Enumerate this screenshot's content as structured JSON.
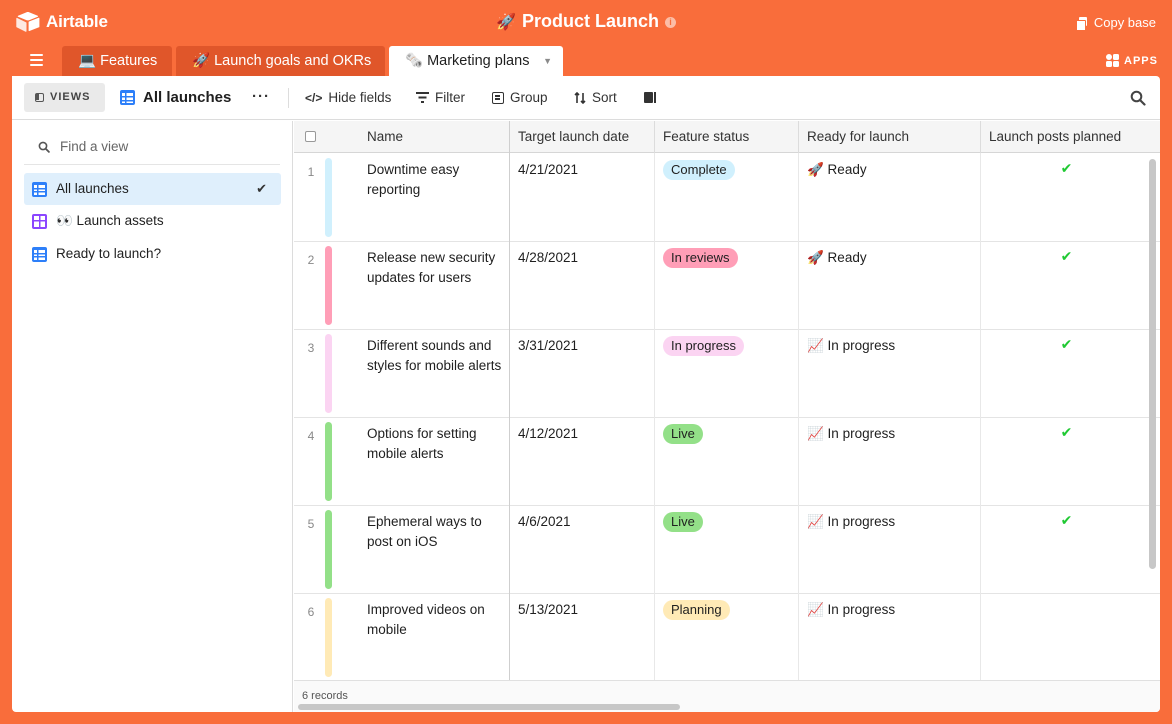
{
  "app": {
    "logo_text": "Airtable",
    "base_title": "Product Launch",
    "base_title_emoji": "🚀",
    "copy_base": "Copy base"
  },
  "tabs": [
    {
      "label": "💻 Features",
      "active": false
    },
    {
      "label": "🚀 Launch goals and OKRs",
      "active": false
    },
    {
      "label": "🗞️ Marketing plans",
      "active": true
    }
  ],
  "apps_label": "APPS",
  "viewbar": {
    "views_label": "VIEWS",
    "current_view": "All launches",
    "more": "···",
    "hide_fields": "Hide fields",
    "filter": "Filter",
    "group": "Group",
    "sort": "Sort"
  },
  "sidebar": {
    "search_placeholder": "Find a view",
    "views": [
      {
        "label": "All launches",
        "icon": "grid-view-icon",
        "active": true
      },
      {
        "label": "👀 Launch assets",
        "icon": "gallery-view-icon",
        "active": false
      },
      {
        "label": "Ready to launch?",
        "icon": "grid-view-icon",
        "active": false
      }
    ]
  },
  "grid": {
    "columns": [
      "Name",
      "Target launch date",
      "Feature status",
      "Ready for launch",
      "Launch posts planned"
    ],
    "rows": [
      {
        "num": "1",
        "name": "Downtime easy reporting",
        "date": "4/21/2021",
        "status": "Complete",
        "ready": "🚀 Ready",
        "posts": "✔",
        "color": "#d0f0fd"
      },
      {
        "num": "2",
        "name": "Release new security updates for users",
        "date": "4/28/2021",
        "status": "In reviews",
        "ready": "🚀 Ready",
        "posts": "✔",
        "color": "#ff9eb7"
      },
      {
        "num": "3",
        "name": "Different sounds and styles for mobile alerts",
        "date": "3/31/2021",
        "status": "In progress",
        "ready": "📈 In progress",
        "posts": "✔",
        "color": "#fbd4f2"
      },
      {
        "num": "4",
        "name": "Options for setting mobile alerts",
        "date": "4/12/2021",
        "status": "Live",
        "ready": "📈 In progress",
        "posts": "✔",
        "color": "#93e088"
      },
      {
        "num": "5",
        "name": "Ephemeral ways to post on iOS",
        "date": "4/6/2021",
        "status": "Live",
        "ready": "📈 In progress",
        "posts": "✔",
        "color": "#93e088"
      },
      {
        "num": "6",
        "name": "Improved videos on mobile",
        "date": "5/13/2021",
        "status": "Planning",
        "ready": "📈 In progress",
        "posts": "",
        "color": "#ffeab6"
      }
    ],
    "records_label": "6 records"
  },
  "colors": {
    "brand": "#f96d3b",
    "status": {
      "Complete": "#d0f0fd",
      "In reviews": "#ff9eb7",
      "In progress": "#fbd4f2",
      "Live": "#93e088",
      "Planning": "#ffeab6"
    }
  }
}
